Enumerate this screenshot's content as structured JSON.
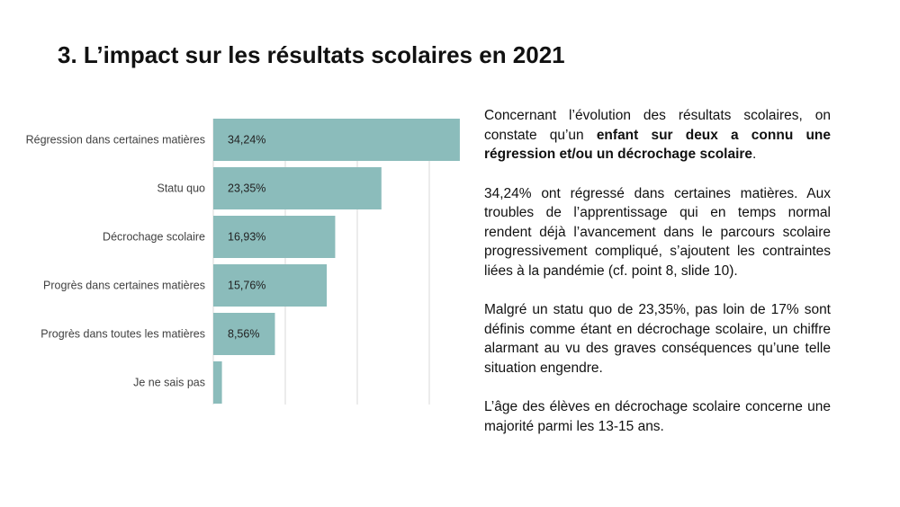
{
  "slide": {
    "title": "3. L’impact sur les résultats scolaires en 2021"
  },
  "chart_data": {
    "type": "bar",
    "orientation": "horizontal",
    "categories": [
      "Régression dans certaines matières",
      "Statu quo",
      "Décrochage scolaire",
      "Progrès dans certaines matières",
      "Progrès dans toutes les matières",
      "Je ne sais pas"
    ],
    "values": [
      34.24,
      23.35,
      16.93,
      15.76,
      8.56,
      1.2
    ],
    "value_labels": [
      "34,24%",
      "23,35%",
      "16,93%",
      "15,76%",
      "8,56%",
      ""
    ],
    "title": "",
    "xlabel": "",
    "ylabel": "",
    "xlim": [
      0,
      35
    ],
    "grid": true,
    "gridlines": [
      0,
      10,
      20,
      30
    ],
    "colors": {
      "bar": "#8bbcbb",
      "grid": "#d9d9d9"
    }
  },
  "text": {
    "p1_a": "Concernant l’évolution des résultats scolaires, on constate qu’un ",
    "p1_b": "enfant sur deux a connu une régression et/ou un décrochage scolaire",
    "p1_c": ".",
    "p2": "34,24% ont régressé dans certaines matières. Aux troubles de l’apprentissage qui en temps normal rendent déjà l’avancement dans le parcours scolaire progressivement compliqué, s’ajoutent les contraintes liées à la pandémie (cf. point 8, slide 10).",
    "p3": "Malgré un statu quo de 23,35%, pas loin de 17% sont définis comme étant en décrochage scolaire, un chiffre alarmant au vu des graves conséquences qu’une telle situation engendre.",
    "p4": "L’âge des élèves en décrochage scolaire concerne une majorité parmi les 13-15 ans."
  }
}
